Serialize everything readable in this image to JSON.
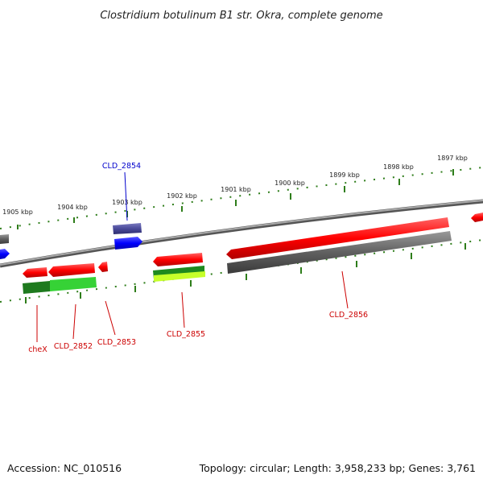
{
  "title": "Clostridium botulinum B1 str. Okra, complete genome",
  "footer": {
    "accession": "Accession: NC_010516",
    "topology": "Topology: circular; Length: 3,958,233 bp; Genes: 3,761"
  },
  "ticks": [
    "1905 kbp",
    "1904 kbp",
    "1903 kbp",
    "1902 kbp",
    "1901 kbp",
    "1900 kbp",
    "1899 kbp",
    "1898 kbp",
    "1897 kbp"
  ],
  "gene_labels": {
    "cld2854": "CLD_2854",
    "chex": "cheX",
    "cld2852": "CLD_2852",
    "cld2853": "CLD_2853",
    "cld2855": "CLD_2855",
    "cld2856": "CLD_2856"
  },
  "colors": {
    "forward_gene": "#ff0000",
    "reverse_cds": "#606060",
    "gc_green": "#2aa52a",
    "label_red": "#cc0000",
    "label_blue": "#0000cc",
    "scale_dots": "#2e7d1a",
    "backbone": "#888888",
    "blue_feature": "#0000ff",
    "purple_feature": "#4a4a9a"
  }
}
